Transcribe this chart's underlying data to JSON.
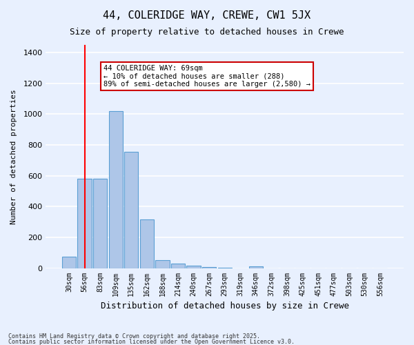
{
  "title1": "44, COLERIDGE WAY, CREWE, CW1 5JX",
  "title2": "Size of property relative to detached houses in Crewe",
  "xlabel": "Distribution of detached houses by size in Crewe",
  "ylabel": "Number of detached properties",
  "categories": [
    "30sqm",
    "56sqm",
    "83sqm",
    "109sqm",
    "135sqm",
    "162sqm",
    "188sqm",
    "214sqm",
    "240sqm",
    "267sqm",
    "293sqm",
    "319sqm",
    "346sqm",
    "372sqm",
    "398sqm",
    "425sqm",
    "451sqm",
    "477sqm",
    "503sqm",
    "530sqm",
    "556sqm"
  ],
  "values": [
    75,
    580,
    580,
    1020,
    755,
    315,
    50,
    30,
    15,
    5,
    2,
    0,
    10,
    0,
    0,
    0,
    0,
    0,
    0,
    0,
    0
  ],
  "bar_color": "#aec6e8",
  "bar_edge_color": "#5a9fd4",
  "bg_color": "#e8f0fe",
  "grid_color": "#ffffff",
  "annotation_box_color": "#ffffff",
  "annotation_box_edge": "#cc0000",
  "red_line_x": 1,
  "annotation_text": "44 COLERIDGE WAY: 69sqm\n← 10% of detached houses are smaller (288)\n89% of semi-detached houses are larger (2,580) →",
  "footer1": "Contains HM Land Registry data © Crown copyright and database right 2025.",
  "footer2": "Contains public sector information licensed under the Open Government Licence v3.0.",
  "ylim": [
    0,
    1450
  ],
  "yticks": [
    0,
    200,
    400,
    600,
    800,
    1000,
    1200,
    1400
  ]
}
